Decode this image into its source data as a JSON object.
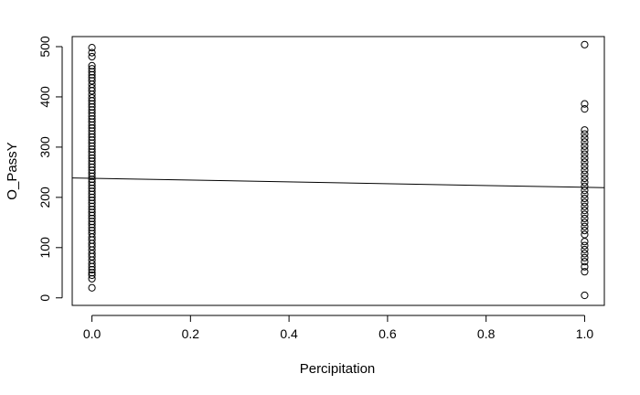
{
  "chart_data": {
    "type": "scatter",
    "title": "",
    "xlabel": "Percipitation",
    "ylabel": "O_PassY",
    "xlim": [
      -0.04,
      1.04
    ],
    "ylim": [
      -15,
      520
    ],
    "xticks": [
      0.0,
      0.2,
      0.4,
      0.6,
      0.8,
      1.0
    ],
    "xtick_labels": [
      "0.0",
      "0.2",
      "0.4",
      "0.6",
      "0.8",
      "1.0"
    ],
    "yticks": [
      0,
      100,
      200,
      300,
      400,
      500
    ],
    "ytick_labels": [
      "0",
      "100",
      "200",
      "300",
      "400",
      "500"
    ],
    "grid": false,
    "marker": "open-circle",
    "point_color": "#000000",
    "series": [
      {
        "points": [
          {
            "x": 0,
            "y": 20
          },
          {
            "x": 0,
            "y": 38
          },
          {
            "x": 0,
            "y": 45
          },
          {
            "x": 0,
            "y": 50
          },
          {
            "x": 0,
            "y": 56
          },
          {
            "x": 0,
            "y": 62
          },
          {
            "x": 0,
            "y": 68
          },
          {
            "x": 0,
            "y": 75
          },
          {
            "x": 0,
            "y": 82
          },
          {
            "x": 0,
            "y": 88
          },
          {
            "x": 0,
            "y": 95
          },
          {
            "x": 0,
            "y": 102
          },
          {
            "x": 0,
            "y": 108
          },
          {
            "x": 0,
            "y": 115
          },
          {
            "x": 0,
            "y": 121
          },
          {
            "x": 0,
            "y": 128
          },
          {
            "x": 0,
            "y": 134
          },
          {
            "x": 0,
            "y": 140
          },
          {
            "x": 0,
            "y": 146
          },
          {
            "x": 0,
            "y": 152
          },
          {
            "x": 0,
            "y": 158
          },
          {
            "x": 0,
            "y": 164
          },
          {
            "x": 0,
            "y": 170
          },
          {
            "x": 0,
            "y": 176
          },
          {
            "x": 0,
            "y": 182
          },
          {
            "x": 0,
            "y": 188
          },
          {
            "x": 0,
            "y": 194
          },
          {
            "x": 0,
            "y": 200
          },
          {
            "x": 0,
            "y": 206
          },
          {
            "x": 0,
            "y": 212
          },
          {
            "x": 0,
            "y": 218
          },
          {
            "x": 0,
            "y": 224
          },
          {
            "x": 0,
            "y": 230
          },
          {
            "x": 0,
            "y": 236
          },
          {
            "x": 0,
            "y": 242
          },
          {
            "x": 0,
            "y": 248
          },
          {
            "x": 0,
            "y": 254
          },
          {
            "x": 0,
            "y": 260
          },
          {
            "x": 0,
            "y": 266
          },
          {
            "x": 0,
            "y": 272
          },
          {
            "x": 0,
            "y": 278
          },
          {
            "x": 0,
            "y": 284
          },
          {
            "x": 0,
            "y": 290
          },
          {
            "x": 0,
            "y": 296
          },
          {
            "x": 0,
            "y": 302
          },
          {
            "x": 0,
            "y": 308
          },
          {
            "x": 0,
            "y": 314
          },
          {
            "x": 0,
            "y": 320
          },
          {
            "x": 0,
            "y": 326
          },
          {
            "x": 0,
            "y": 332
          },
          {
            "x": 0,
            "y": 338
          },
          {
            "x": 0,
            "y": 344
          },
          {
            "x": 0,
            "y": 350
          },
          {
            "x": 0,
            "y": 356
          },
          {
            "x": 0,
            "y": 362
          },
          {
            "x": 0,
            "y": 368
          },
          {
            "x": 0,
            "y": 374
          },
          {
            "x": 0,
            "y": 380
          },
          {
            "x": 0,
            "y": 386
          },
          {
            "x": 0,
            "y": 392
          },
          {
            "x": 0,
            "y": 398
          },
          {
            "x": 0,
            "y": 405
          },
          {
            "x": 0,
            "y": 412
          },
          {
            "x": 0,
            "y": 418
          },
          {
            "x": 0,
            "y": 425
          },
          {
            "x": 0,
            "y": 432
          },
          {
            "x": 0,
            "y": 438
          },
          {
            "x": 0,
            "y": 444
          },
          {
            "x": 0,
            "y": 450
          },
          {
            "x": 0,
            "y": 456
          },
          {
            "x": 0,
            "y": 462
          },
          {
            "x": 0,
            "y": 480
          },
          {
            "x": 0,
            "y": 488
          },
          {
            "x": 0,
            "y": 498
          },
          {
            "x": 1,
            "y": 5
          },
          {
            "x": 1,
            "y": 52
          },
          {
            "x": 1,
            "y": 62
          },
          {
            "x": 1,
            "y": 72
          },
          {
            "x": 1,
            "y": 80
          },
          {
            "x": 1,
            "y": 88
          },
          {
            "x": 1,
            "y": 96
          },
          {
            "x": 1,
            "y": 104
          },
          {
            "x": 1,
            "y": 112
          },
          {
            "x": 1,
            "y": 126
          },
          {
            "x": 1,
            "y": 134
          },
          {
            "x": 1,
            "y": 142
          },
          {
            "x": 1,
            "y": 150
          },
          {
            "x": 1,
            "y": 158
          },
          {
            "x": 1,
            "y": 166
          },
          {
            "x": 1,
            "y": 174
          },
          {
            "x": 1,
            "y": 182
          },
          {
            "x": 1,
            "y": 190
          },
          {
            "x": 1,
            "y": 198
          },
          {
            "x": 1,
            "y": 206
          },
          {
            "x": 1,
            "y": 214
          },
          {
            "x": 1,
            "y": 222
          },
          {
            "x": 1,
            "y": 230
          },
          {
            "x": 1,
            "y": 238
          },
          {
            "x": 1,
            "y": 246
          },
          {
            "x": 1,
            "y": 254
          },
          {
            "x": 1,
            "y": 262
          },
          {
            "x": 1,
            "y": 270
          },
          {
            "x": 1,
            "y": 278
          },
          {
            "x": 1,
            "y": 286
          },
          {
            "x": 1,
            "y": 294
          },
          {
            "x": 1,
            "y": 302
          },
          {
            "x": 1,
            "y": 310
          },
          {
            "x": 1,
            "y": 318
          },
          {
            "x": 1,
            "y": 326
          },
          {
            "x": 1,
            "y": 334
          },
          {
            "x": 1,
            "y": 376
          },
          {
            "x": 1,
            "y": 386
          },
          {
            "x": 1,
            "y": 504
          }
        ]
      }
    ],
    "regression_line": {
      "intercept": 238,
      "slope": -18,
      "color": "#000000"
    }
  }
}
